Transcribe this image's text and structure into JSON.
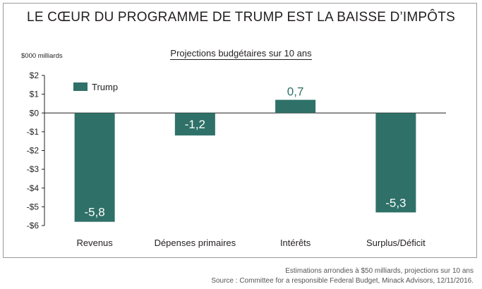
{
  "chart_data": {
    "type": "bar",
    "title": "LE CŒUR DU PROGRAMME DE TRUMP EST LA BAISSE D’IMPÔTS",
    "subtitle": "Projections budgétaires sur 10 ans",
    "ylabel": "$000 milliards",
    "categories": [
      "Revenus",
      "Dépenses primaires",
      "Intérêts",
      "Surplus/Déficit"
    ],
    "series": [
      {
        "name": "Trump",
        "values": [
          -5.8,
          -1.2,
          0.7,
          -5.3
        ],
        "color": "#2f7168"
      }
    ],
    "value_labels": [
      "-5,8",
      "-1,2",
      "0,7",
      "-5,3"
    ],
    "ylim": [
      -6,
      2
    ],
    "yticks": [
      2,
      1,
      0,
      -1,
      -2,
      -3,
      -4,
      -5,
      -6
    ],
    "ytick_labels": [
      "$2",
      "$1",
      "$0",
      "-$1",
      "-$2",
      "-$3",
      "-$4",
      "-$5",
      "-$6"
    ],
    "grid": false,
    "legend": "top-left"
  },
  "notes": {
    "line1": "Estimations arrondies à $50 milliards, projections sur 10 ans",
    "line2": "Source : Committee for a responsible Federal Budget, Minack Advisors, 12/11/2016."
  }
}
